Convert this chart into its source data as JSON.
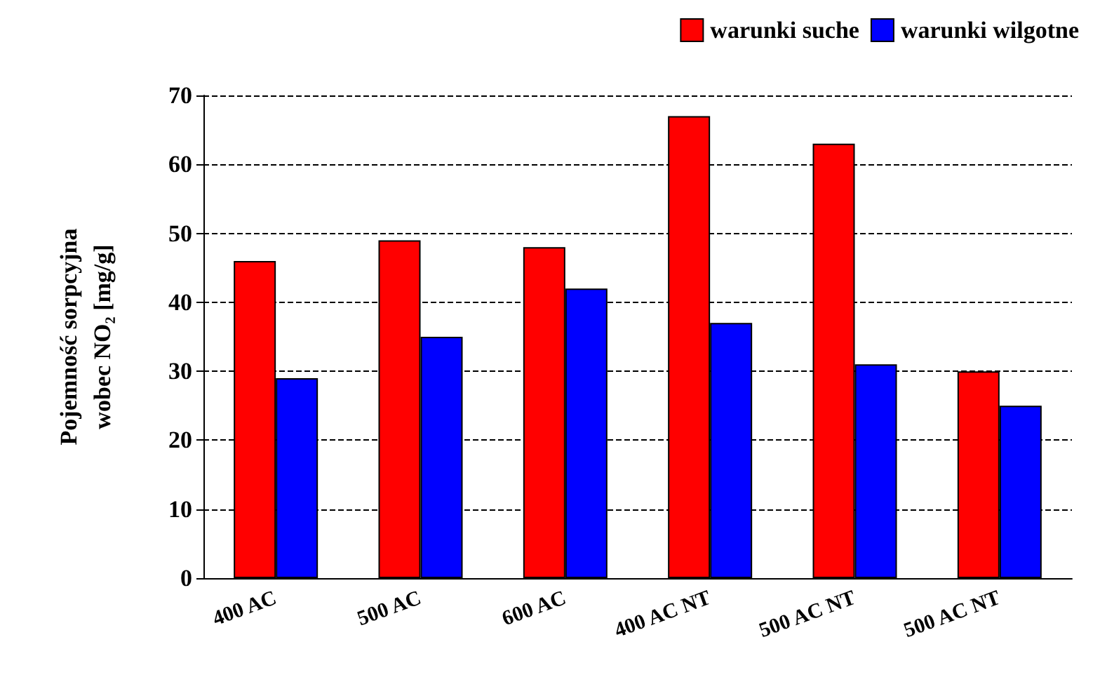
{
  "chart_data": {
    "type": "bar",
    "ylabel": "Pojemność sorpcyjna\nwobec NO₂ [mg/g]",
    "categories": [
      "400 AC",
      "500 AC",
      "600 AC",
      "400 AC NT",
      "500 AC NT",
      "500 AC NT"
    ],
    "series": [
      {
        "name": "warunki suche",
        "color": "#ff0000",
        "values": [
          46,
          49,
          48,
          67,
          63,
          30
        ]
      },
      {
        "name": "warunki wilgotne",
        "color": "#0000ff",
        "values": [
          29,
          35,
          42,
          37,
          31,
          25
        ]
      }
    ],
    "ylim": [
      0,
      70
    ],
    "yticks": [
      0,
      10,
      20,
      30,
      40,
      50,
      60,
      70
    ],
    "grid": "y",
    "line_style": "dashed",
    "legend": "top right"
  }
}
